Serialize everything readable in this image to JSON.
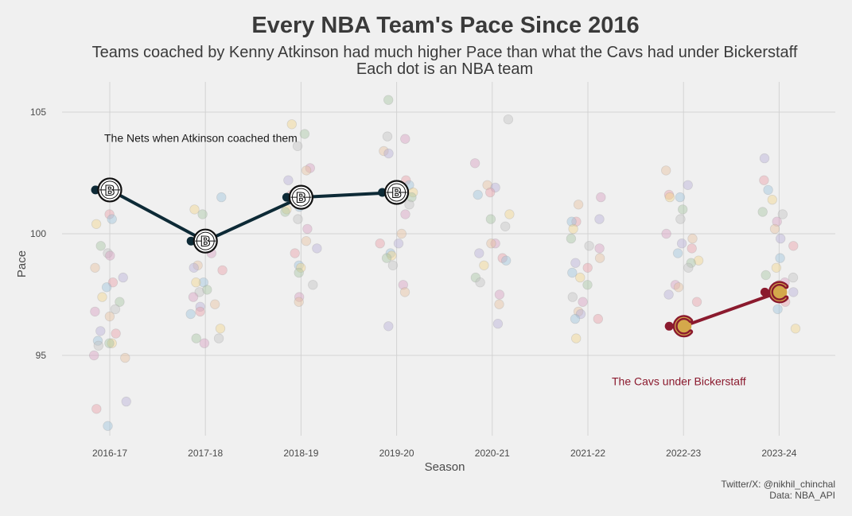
{
  "chart_data": {
    "type": "scatter",
    "title": "Every NBA Team's Pace Since 2016",
    "subtitle": [
      "Teams coached by Kenny Atkinson had much higher Pace than what the Cavs had under Bickerstaff",
      "Each dot is an NBA team"
    ],
    "xlabel": "Season",
    "ylabel": "Pace",
    "categories": [
      "2016-17",
      "2017-18",
      "2018-19",
      "2019-20",
      "2020-21",
      "2021-22",
      "2022-23",
      "2023-24"
    ],
    "ylim": [
      91.5,
      106
    ],
    "yticks": [
      95,
      100,
      105
    ],
    "grid": true,
    "team_points": [
      {
        "season": "2016-17",
        "values": [
          100.8,
          100.6,
          100.4,
          99.5,
          99.2,
          99.1,
          98.6,
          98.2,
          98.0,
          97.8,
          97.4,
          97.2,
          96.9,
          96.8,
          96.6,
          96.0,
          95.9,
          95.6,
          95.5,
          95.5,
          95.4,
          95.0,
          94.9,
          93.1,
          92.8,
          92.1
        ]
      },
      {
        "season": "2017-18",
        "values": [
          101.5,
          101.0,
          100.8,
          99.6,
          99.2,
          98.7,
          98.6,
          98.5,
          98.0,
          98.0,
          97.7,
          97.6,
          97.4,
          97.1,
          97.0,
          96.8,
          96.7,
          96.1,
          95.7,
          95.7,
          95.5
        ]
      },
      {
        "season": "2018-19",
        "values": [
          104.5,
          104.1,
          103.6,
          102.7,
          102.6,
          102.2,
          101.6,
          101.1,
          101.0,
          100.9,
          100.6,
          100.2,
          99.7,
          99.4,
          99.2,
          98.7,
          98.6,
          98.4,
          97.9,
          97.4,
          97.2
        ]
      },
      {
        "season": "2019-20",
        "values": [
          105.5,
          104.0,
          103.9,
          103.4,
          103.3,
          102.2,
          102.0,
          101.7,
          101.5,
          101.2,
          100.8,
          100.0,
          99.6,
          99.6,
          99.2,
          99.1,
          99.0,
          98.7,
          97.9,
          97.6,
          96.2
        ]
      },
      {
        "season": "2020-21",
        "values": [
          104.7,
          102.9,
          102.0,
          101.9,
          101.7,
          101.6,
          100.8,
          100.6,
          100.3,
          99.6,
          99.6,
          99.2,
          99.0,
          98.9,
          98.7,
          98.2,
          98.0,
          97.5,
          97.1,
          96.3
        ]
      },
      {
        "season": "2021-22",
        "values": [
          101.5,
          101.2,
          100.6,
          100.5,
          100.5,
          100.2,
          99.8,
          99.5,
          99.4,
          99.0,
          98.8,
          98.6,
          98.4,
          98.2,
          97.9,
          97.4,
          97.2,
          96.8,
          96.7,
          96.5,
          96.5,
          95.7
        ]
      },
      {
        "season": "2022-23",
        "values": [
          102.6,
          102.0,
          101.6,
          101.5,
          101.5,
          101.0,
          100.6,
          100.0,
          99.8,
          99.6,
          99.4,
          99.2,
          98.9,
          98.8,
          98.6,
          97.9,
          97.8,
          97.5,
          97.2
        ]
      },
      {
        "season": "2023-24",
        "values": [
          103.1,
          102.2,
          101.8,
          101.4,
          100.9,
          100.8,
          100.5,
          100.2,
          99.8,
          99.5,
          99.0,
          98.6,
          98.3,
          98.2,
          98.0,
          97.9,
          97.6,
          97.2,
          96.9,
          96.1
        ]
      }
    ],
    "series": [
      {
        "name": "The Nets when Atkinson coached them",
        "color": "#0d2a36",
        "x": [
          "2016-17",
          "2017-18",
          "2018-19",
          "2019-20"
        ],
        "values": [
          101.8,
          99.7,
          101.5,
          101.7
        ]
      },
      {
        "name": "The Cavs under Bickerstaff",
        "color": "#8b1a2e",
        "x": [
          "2022-23",
          "2023-24"
        ],
        "values": [
          96.2,
          97.6
        ]
      }
    ],
    "annotations": [
      {
        "text": "The Nets when Atkinson coached them",
        "x": "2016-17",
        "y": 103.9,
        "color": "#1a1a1a"
      },
      {
        "text": "The Cavs under Bickerstaff",
        "x": "2022-23",
        "y": 93.9,
        "color": "#8b1a2e"
      }
    ]
  },
  "caption": {
    "line1": "Twitter/X: @nikhil_chinchal",
    "line2": "Data: NBA_API"
  },
  "colors": {
    "background": "#f0f0f0",
    "nets": "#0d2a36",
    "cavs": "#8b1a2e",
    "cavs_gold": "#d4a84b"
  }
}
